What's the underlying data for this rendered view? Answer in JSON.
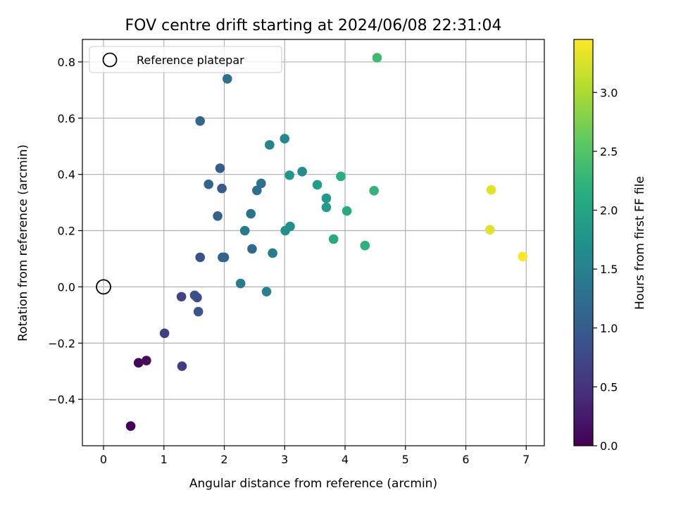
{
  "chart_data": {
    "type": "scatter",
    "title": "FOV centre drift starting at 2024/06/08 22:31:04",
    "xlabel": "Angular distance from reference (arcmin)",
    "ylabel": "Rotation from reference (arcmin)",
    "xlim": [
      -0.35,
      7.3
    ],
    "ylim": [
      -0.565,
      0.88
    ],
    "xticks": [
      0,
      1,
      2,
      3,
      4,
      5,
      6,
      7
    ],
    "xtick_labels": [
      "0",
      "1",
      "2",
      "3",
      "4",
      "5",
      "6",
      "7"
    ],
    "yticks": [
      -0.4,
      -0.2,
      0.0,
      0.2,
      0.4,
      0.6,
      0.8
    ],
    "ytick_labels": [
      "−0.4",
      "−0.2",
      "0.0",
      "0.2",
      "0.4",
      "0.6",
      "0.8"
    ],
    "grid": true,
    "legend": {
      "position": "top-left",
      "entries": [
        {
          "label": "Reference platepar",
          "marker": "open-circle"
        }
      ]
    },
    "reference_point": {
      "x": 0,
      "y": 0
    },
    "colorbar": {
      "label": "Hours from first FF file",
      "colormap": "viridis",
      "range": [
        0,
        3.45
      ],
      "ticks": [
        0.0,
        0.5,
        1.0,
        1.5,
        2.0,
        2.5,
        3.0
      ],
      "tick_labels": [
        "0.0",
        "0.5",
        "1.0",
        "1.5",
        "2.0",
        "2.5",
        "3.0"
      ]
    },
    "points": [
      {
        "x": 0.45,
        "y": -0.495,
        "c": 0.02
      },
      {
        "x": 0.58,
        "y": -0.27,
        "c": 0.06
      },
      {
        "x": 0.71,
        "y": -0.262,
        "c": 0.1
      },
      {
        "x": 1.01,
        "y": -0.165,
        "c": 0.65
      },
      {
        "x": 1.29,
        "y": -0.035,
        "c": 0.7
      },
      {
        "x": 1.3,
        "y": -0.282,
        "c": 0.62
      },
      {
        "x": 1.51,
        "y": -0.03,
        "c": 0.85
      },
      {
        "x": 1.55,
        "y": -0.038,
        "c": 0.82
      },
      {
        "x": 1.57,
        "y": -0.088,
        "c": 0.9
      },
      {
        "x": 1.6,
        "y": 0.105,
        "c": 0.88
      },
      {
        "x": 1.6,
        "y": 0.59,
        "c": 1.15
      },
      {
        "x": 1.74,
        "y": 0.365,
        "c": 1.1
      },
      {
        "x": 1.89,
        "y": 0.252,
        "c": 1.05
      },
      {
        "x": 1.93,
        "y": 0.422,
        "c": 1.0
      },
      {
        "x": 1.96,
        "y": 0.35,
        "c": 1.0
      },
      {
        "x": 1.97,
        "y": 0.105,
        "c": 1.05
      },
      {
        "x": 2.0,
        "y": 0.105,
        "c": 1.1
      },
      {
        "x": 2.05,
        "y": 0.74,
        "c": 1.25
      },
      {
        "x": 2.27,
        "y": 0.012,
        "c": 1.45
      },
      {
        "x": 2.34,
        "y": 0.2,
        "c": 1.4
      },
      {
        "x": 2.44,
        "y": 0.26,
        "c": 1.3
      },
      {
        "x": 2.46,
        "y": 0.135,
        "c": 1.2
      },
      {
        "x": 2.54,
        "y": 0.343,
        "c": 1.25
      },
      {
        "x": 2.61,
        "y": 0.368,
        "c": 1.3
      },
      {
        "x": 2.7,
        "y": -0.017,
        "c": 1.5
      },
      {
        "x": 2.75,
        "y": 0.505,
        "c": 1.55
      },
      {
        "x": 2.8,
        "y": 0.12,
        "c": 1.45
      },
      {
        "x": 3.0,
        "y": 0.527,
        "c": 1.6
      },
      {
        "x": 3.01,
        "y": 0.2,
        "c": 1.7
      },
      {
        "x": 3.08,
        "y": 0.397,
        "c": 1.8
      },
      {
        "x": 3.09,
        "y": 0.215,
        "c": 1.7
      },
      {
        "x": 3.29,
        "y": 0.41,
        "c": 1.65
      },
      {
        "x": 3.54,
        "y": 0.363,
        "c": 1.9
      },
      {
        "x": 3.69,
        "y": 0.315,
        "c": 1.85
      },
      {
        "x": 3.69,
        "y": 0.283,
        "c": 1.9
      },
      {
        "x": 3.81,
        "y": 0.17,
        "c": 2.1
      },
      {
        "x": 3.93,
        "y": 0.393,
        "c": 2.15
      },
      {
        "x": 4.03,
        "y": 0.27,
        "c": 2.1
      },
      {
        "x": 4.33,
        "y": 0.147,
        "c": 2.2
      },
      {
        "x": 4.48,
        "y": 0.342,
        "c": 2.25
      },
      {
        "x": 4.53,
        "y": 0.815,
        "c": 2.35
      },
      {
        "x": 6.4,
        "y": 0.203,
        "c": 3.3
      },
      {
        "x": 6.42,
        "y": 0.345,
        "c": 3.3
      },
      {
        "x": 6.94,
        "y": 0.108,
        "c": 3.44
      }
    ]
  }
}
